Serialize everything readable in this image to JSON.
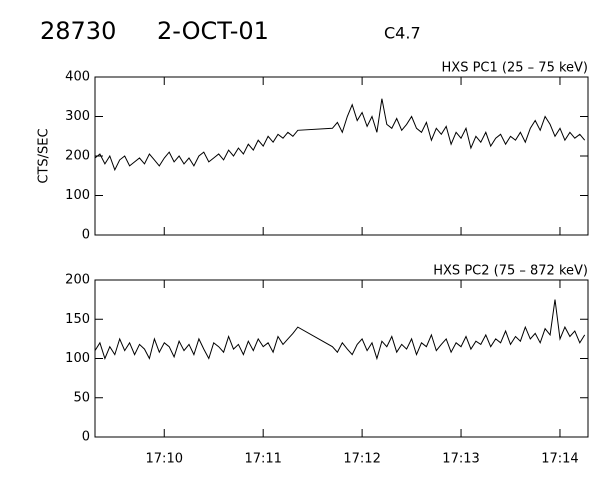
{
  "header": {
    "id": "28730",
    "date": "2-OCT-01",
    "class": "C4.7"
  },
  "chart_data": [
    {
      "type": "line",
      "title": "HXS PC1 (25 – 75 keV)",
      "ylabel": "CTS/SEC",
      "color": "#000000",
      "xlim": [
        61758,
        62057
      ],
      "ylim": [
        0,
        400
      ],
      "yticks": [
        0,
        100,
        200,
        300,
        400
      ],
      "x": [
        61758,
        61761,
        61764,
        61767,
        61770,
        61773,
        61776,
        61779,
        61782,
        61785,
        61788,
        61791,
        61794,
        61797,
        61800,
        61803,
        61806,
        61809,
        61812,
        61815,
        61818,
        61821,
        61824,
        61827,
        61830,
        61833,
        61836,
        61839,
        61842,
        61845,
        61848,
        61851,
        61854,
        61857,
        61860,
        61863,
        61866,
        61869,
        61872,
        61875,
        61878,
        61881,
        61902,
        61905,
        61908,
        61911,
        61914,
        61917,
        61920,
        61923,
        61926,
        61929,
        61932,
        61935,
        61938,
        61941,
        61944,
        61947,
        61950,
        61953,
        61956,
        61959,
        61962,
        61965,
        61968,
        61971,
        61974,
        61977,
        61980,
        61983,
        61986,
        61989,
        61992,
        61995,
        61998,
        62001,
        62004,
        62007,
        62010,
        62013,
        62016,
        62019,
        62022,
        62025,
        62028,
        62031,
        62034,
        62037,
        62040,
        62043,
        62046,
        62049,
        62052,
        62055
      ],
      "values": [
        195,
        205,
        180,
        200,
        165,
        190,
        200,
        175,
        185,
        195,
        180,
        205,
        190,
        175,
        195,
        210,
        185,
        200,
        180,
        195,
        175,
        200,
        210,
        185,
        195,
        205,
        190,
        215,
        200,
        220,
        205,
        230,
        215,
        240,
        225,
        250,
        235,
        255,
        245,
        260,
        250,
        265,
        270,
        285,
        260,
        300,
        330,
        290,
        310,
        275,
        300,
        260,
        345,
        280,
        270,
        295,
        265,
        280,
        300,
        270,
        260,
        285,
        240,
        270,
        255,
        275,
        230,
        260,
        245,
        270,
        220,
        250,
        235,
        260,
        225,
        245,
        255,
        230,
        250,
        240,
        260,
        235,
        270,
        290,
        265,
        300,
        280,
        250,
        270,
        240,
        260,
        245,
        255,
        240
      ]
    },
    {
      "type": "line",
      "title": "HXS PC2 (75 – 872 keV)",
      "color": "#000000",
      "xlim": [
        61758,
        62057
      ],
      "ylim": [
        0,
        200
      ],
      "yticks": [
        0,
        50,
        100,
        150,
        200
      ],
      "xticks": [
        {
          "value": 61800,
          "label": "17:10"
        },
        {
          "value": 61860,
          "label": "17:11"
        },
        {
          "value": 61920,
          "label": "17:12"
        },
        {
          "value": 61980,
          "label": "17:13"
        },
        {
          "value": 62040,
          "label": "17:14"
        }
      ],
      "x": [
        61758,
        61761,
        61764,
        61767,
        61770,
        61773,
        61776,
        61779,
        61782,
        61785,
        61788,
        61791,
        61794,
        61797,
        61800,
        61803,
        61806,
        61809,
        61812,
        61815,
        61818,
        61821,
        61824,
        61827,
        61830,
        61833,
        61836,
        61839,
        61842,
        61845,
        61848,
        61851,
        61854,
        61857,
        61860,
        61863,
        61866,
        61869,
        61872,
        61875,
        61878,
        61881,
        61902,
        61905,
        61908,
        61911,
        61914,
        61917,
        61920,
        61923,
        61926,
        61929,
        61932,
        61935,
        61938,
        61941,
        61944,
        61947,
        61950,
        61953,
        61956,
        61959,
        61962,
        61965,
        61968,
        61971,
        61974,
        61977,
        61980,
        61983,
        61986,
        61989,
        61992,
        61995,
        61998,
        62001,
        62004,
        62007,
        62010,
        62013,
        62016,
        62019,
        62022,
        62025,
        62028,
        62031,
        62034,
        62037,
        62040,
        62043,
        62046,
        62049,
        62052,
        62055
      ],
      "values": [
        110,
        120,
        100,
        115,
        105,
        125,
        110,
        120,
        105,
        118,
        112,
        100,
        125,
        108,
        120,
        115,
        102,
        122,
        110,
        118,
        105,
        125,
        112,
        100,
        120,
        115,
        108,
        128,
        112,
        118,
        105,
        122,
        110,
        125,
        115,
        120,
        108,
        128,
        118,
        125,
        132,
        140,
        115,
        108,
        120,
        112,
        105,
        118,
        125,
        110,
        120,
        100,
        122,
        115,
        128,
        108,
        118,
        112,
        125,
        105,
        120,
        115,
        130,
        110,
        118,
        125,
        108,
        120,
        115,
        128,
        112,
        122,
        118,
        130,
        115,
        125,
        120,
        135,
        118,
        128,
        122,
        140,
        125,
        132,
        120,
        138,
        130,
        175,
        125,
        140,
        128,
        135,
        120,
        130
      ]
    }
  ]
}
